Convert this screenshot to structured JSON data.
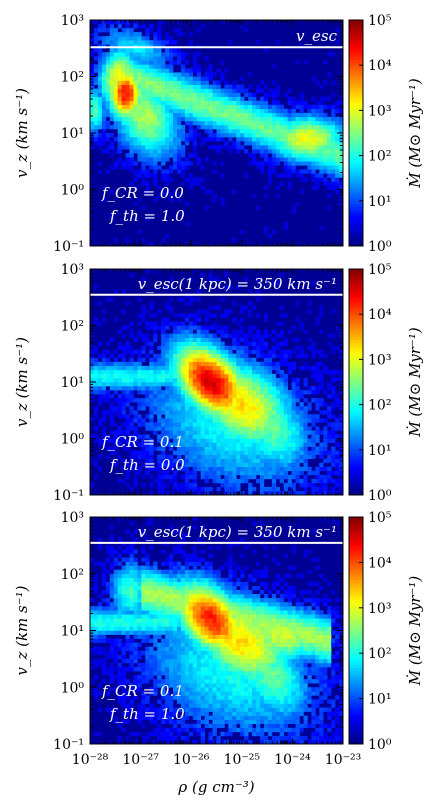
{
  "chart_data": [
    {
      "type": "heatmap",
      "xlabel": "ρ (g cm⁻³)",
      "ylabel": "v_z (km s⁻¹)",
      "x_scale": "log",
      "y_scale": "log",
      "xlim": [
        1e-28,
        1e-23
      ],
      "ylim": [
        0.1,
        1000
      ],
      "x_ticks": [
        "10⁻²⁸",
        "10⁻²⁷",
        "10⁻²⁶",
        "10⁻²⁵",
        "10⁻²⁴",
        "10⁻²³"
      ],
      "y_ticks": [
        "10⁻¹",
        "10⁰",
        "10¹",
        "10²",
        "10³"
      ],
      "colorbar_label": "Ṁ (M⊙ Myr⁻¹)",
      "colorbar_ticks": [
        "10⁰",
        "10¹",
        "10²",
        "10³",
        "10⁴",
        "10⁵"
      ],
      "colorbar_range": [
        1,
        100000
      ],
      "colormap": "jet",
      "hline": {
        "value": 330,
        "label": "v_esc"
      },
      "params": [
        "f_CR = 0.0",
        "f_th = 1.0"
      ],
      "peak": {
        "log_rho": -27.3,
        "log_vz": 1.7,
        "log_mdot": 4.3
      }
    },
    {
      "type": "heatmap",
      "xlabel": "ρ (g cm⁻³)",
      "ylabel": "v_z (km s⁻¹)",
      "x_scale": "log",
      "y_scale": "log",
      "xlim": [
        1e-28,
        1e-23
      ],
      "ylim": [
        0.1,
        1000
      ],
      "colorbar_label": "Ṁ (M⊙ Myr⁻¹)",
      "colorbar_ticks": [
        "10⁰",
        "10¹",
        "10²",
        "10³",
        "10⁴",
        "10⁵"
      ],
      "colorbar_range": [
        1,
        100000
      ],
      "colormap": "jet",
      "hline": {
        "value": 350,
        "label": "v_esc(1 kpc) = 350 km s⁻¹"
      },
      "params": [
        "f_CR = 0.1",
        "f_th = 0.0"
      ],
      "peak": {
        "log_rho": -25.6,
        "log_vz": 1.0,
        "log_mdot": 4.6
      }
    },
    {
      "type": "heatmap",
      "xlabel": "ρ (g cm⁻³)",
      "ylabel": "v_z (km s⁻¹)",
      "x_scale": "log",
      "y_scale": "log",
      "xlim": [
        1e-28,
        1e-23
      ],
      "ylim": [
        0.1,
        1000
      ],
      "colorbar_label": "Ṁ (M⊙ Myr⁻¹)",
      "colorbar_ticks": [
        "10⁰",
        "10¹",
        "10²",
        "10³",
        "10⁴",
        "10⁵"
      ],
      "colorbar_range": [
        1,
        100000
      ],
      "colormap": "jet",
      "hline": {
        "value": 350,
        "label": "v_esc(1 kpc) = 350 km s⁻¹"
      },
      "params": [
        "f_CR = 0.1",
        "f_th = 1.0"
      ],
      "peak": {
        "log_rho": -25.8,
        "log_vz": 1.2,
        "log_mdot": 4.2
      }
    }
  ]
}
